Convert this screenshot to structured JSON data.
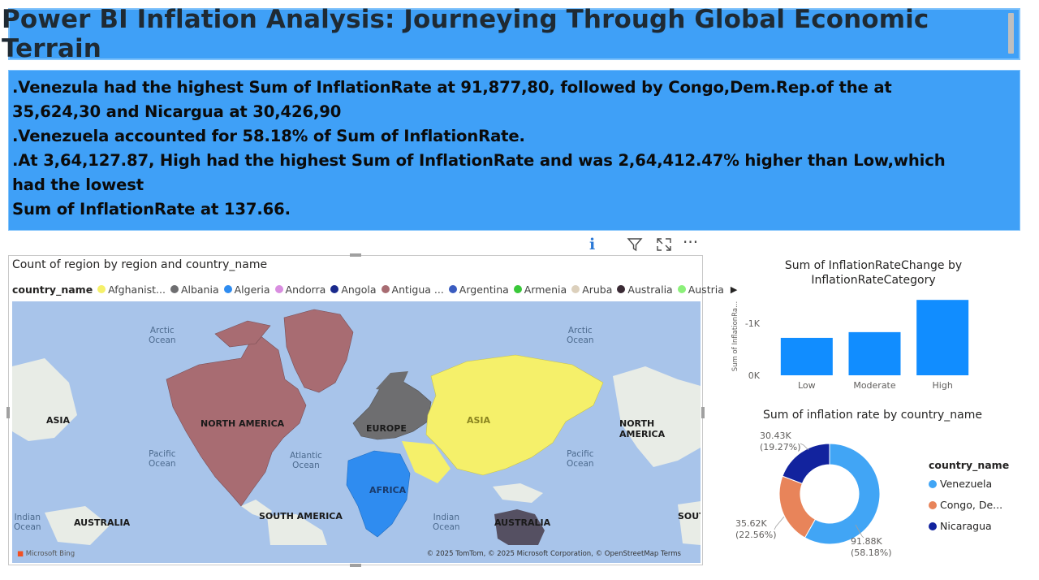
{
  "header": {
    "title": "Power BI Inflation Analysis: Journeying Through Global Economic Terrain"
  },
  "insights": {
    "lines": [
      ".Venezula had the highest Sum of InflationRate at 91,877,80, followed by Congo,Dem.Rep.of the at",
      "35,624,30 and Nicargua at 30,426,90",
      ".Venezuela accounted for 58.18% of Sum of InflationRate.",
      ".At 3,64,127.87, High had the highest Sum of InflationRate and was 2,64,412.47% higher than Low,which",
      "had the lowest",
      "Sum of InflationRate at 137.66."
    ]
  },
  "map_visual": {
    "title": "Count of region by region and country_name",
    "legend_title": "country_name",
    "legend": [
      {
        "label": "Afghanist...",
        "color": "#f5f06a"
      },
      {
        "label": "Albania",
        "color": "#6e6e70"
      },
      {
        "label": "Algeria",
        "color": "#2f8cf0"
      },
      {
        "label": "Andorra",
        "color": "#d98ee0"
      },
      {
        "label": "Angola",
        "color": "#1a2a8c"
      },
      {
        "label": "Antigua ...",
        "color": "#a86c72"
      },
      {
        "label": "Argentina",
        "color": "#3a5cc0"
      },
      {
        "label": "Armenia",
        "color": "#3ac83a"
      },
      {
        "label": "Aruba",
        "color": "#dcd0bc"
      },
      {
        "label": "Australia",
        "color": "#3a2a34"
      },
      {
        "label": "Austria",
        "color": "#8cf07a"
      }
    ],
    "ocean_labels": {
      "arctic_left": [
        "Arctic",
        "Ocean"
      ],
      "arctic_right": [
        "Arctic",
        "Ocean"
      ],
      "pacific_left": [
        "Pacific",
        "Ocean"
      ],
      "atlantic": [
        "Atlantic",
        "Ocean"
      ],
      "pacific_right": [
        "Pacific",
        "Ocean"
      ],
      "indian_left": [
        "Indian",
        "Ocean"
      ],
      "indian_right": [
        "Indian",
        "Ocean"
      ]
    },
    "region_labels": {
      "asia_left": "ASIA",
      "north_america": "NORTH AMERICA",
      "europe": "EUROPE",
      "asia": "ASIA",
      "north_america_right": "NORTH AMERICA",
      "africa": "AFRICA",
      "australia_left": "AUSTRALIA",
      "south_america": "SOUTH AMERICA",
      "australia": "AUSTRALIA",
      "south_right": "SOUT"
    },
    "bing": "Microsoft Bing",
    "attribution": "© 2025 TomTom, © 2025 Microsoft Corporation, © OpenStreetMap  Terms",
    "colors": {
      "ocean": "#a8c4ea",
      "land": "#e8ece6",
      "north_america": "#a86c72",
      "europe": "#6e6e70",
      "asia": "#f5f06a",
      "africa": "#2f8cf0",
      "australia": "#3a2a34"
    }
  },
  "bar_chart": {
    "title_line1": "Sum of InflationRateChange by",
    "title_line2": "InflationRateCategory"
  },
  "donut": {
    "title": "Sum of inflation rate by country_name",
    "legend_title": "country_name",
    "legend": [
      "Venezuela",
      "Congo, De...",
      "Nicaragua"
    ]
  },
  "chart_data": [
    {
      "type": "bar",
      "title": "Sum of InflationRateChange by InflationRateCategory",
      "categories": [
        "Low",
        "Moderate",
        "High"
      ],
      "values": [
        -720,
        -830,
        -1450
      ],
      "ylabel": "Sum of InflationRa...",
      "y_ticks": [
        "-1K",
        "0K"
      ],
      "ylim": [
        0,
        -1500
      ],
      "color": "#118dff"
    },
    {
      "type": "pie",
      "title": "Sum of inflation rate by country_name",
      "categories": [
        "Venezuela",
        "Congo, De...",
        "Nicaragua"
      ],
      "values": [
        91880,
        35620,
        30430
      ],
      "data_labels": [
        [
          "91.88K",
          "(58.18%)"
        ],
        [
          "35.62K",
          "(22.56%)"
        ],
        [
          "30.43K",
          "(19.27%)"
        ]
      ],
      "colors": [
        "#41a5f5",
        "#e8845a",
        "#12239e"
      ],
      "legend": "right"
    }
  ]
}
